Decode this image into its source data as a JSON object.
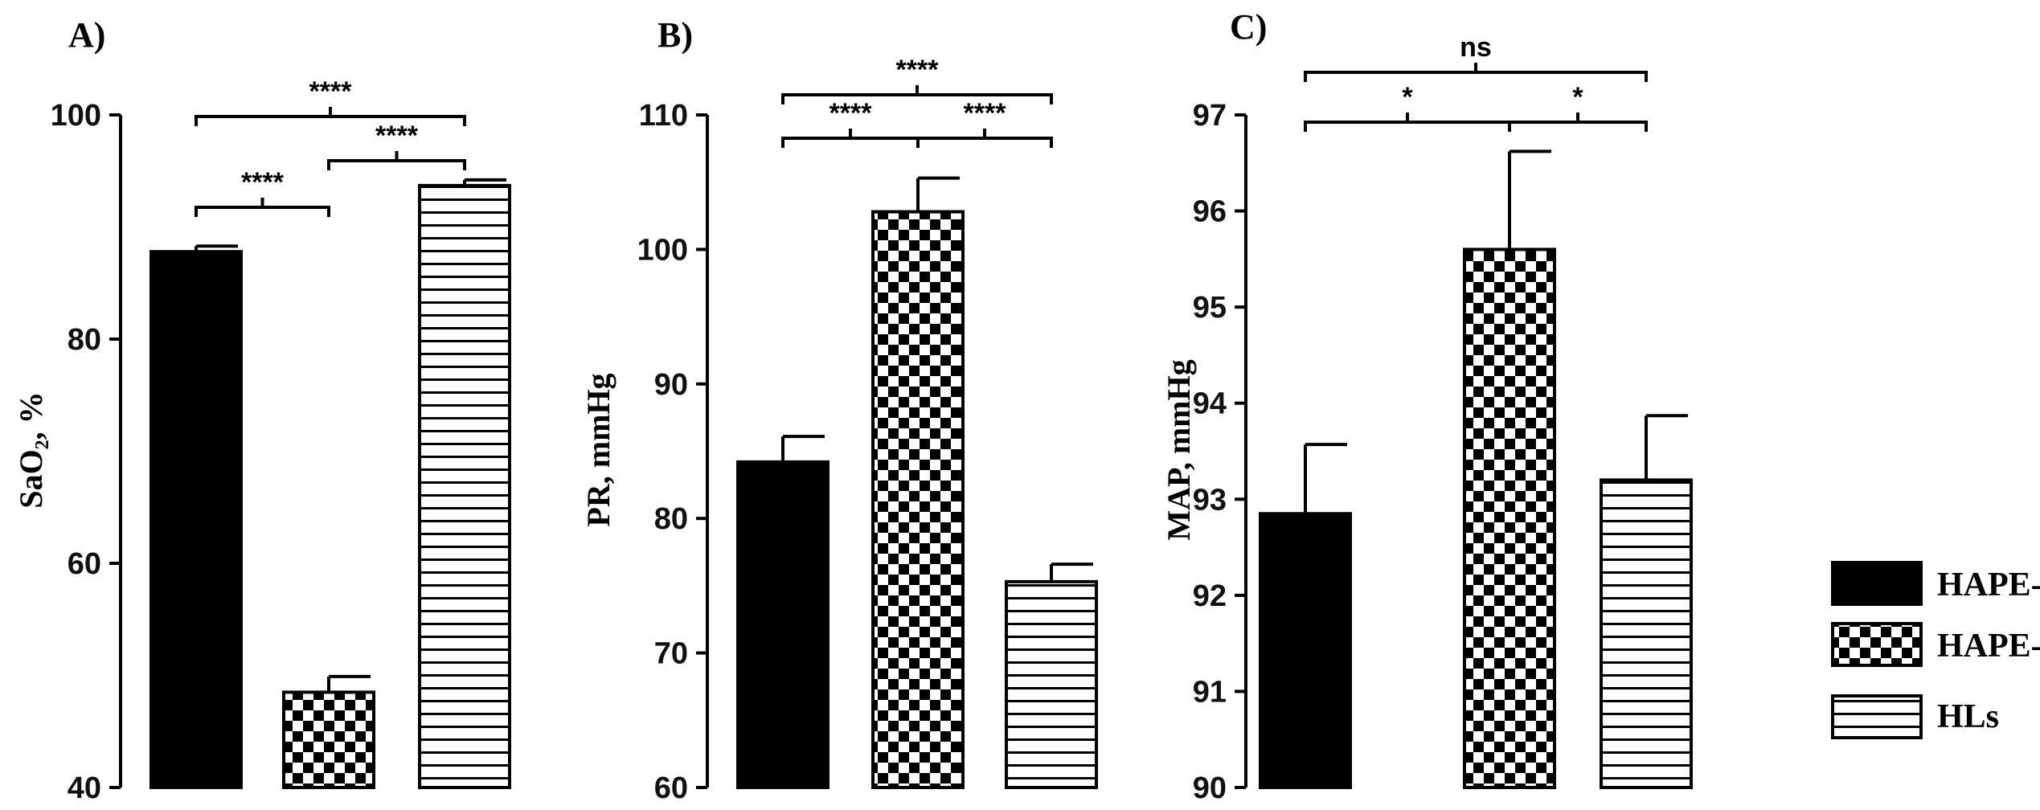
{
  "chart_data": [
    {
      "panel": "A)",
      "type": "bar",
      "ylabel": "SaO₂, %",
      "ylim": [
        40,
        100
      ],
      "yticks": [
        40,
        60,
        80,
        100
      ],
      "categories": [
        "HAPE-f",
        "HAPE-p",
        "HLs"
      ],
      "values": [
        87.8,
        48.5,
        93.7
      ],
      "errors": [
        0.5,
        1.4,
        0.5
      ],
      "significance": [
        {
          "from": 0,
          "to": 1,
          "label": "****",
          "level": 0
        },
        {
          "from": 1,
          "to": 2,
          "label": "****",
          "level": 1
        },
        {
          "from": 0,
          "to": 2,
          "label": "****",
          "level": 2
        }
      ]
    },
    {
      "panel": "B)",
      "type": "bar",
      "ylabel": "PR, mmHg",
      "ylim": [
        60,
        110
      ],
      "yticks": [
        60,
        70,
        80,
        90,
        100,
        110
      ],
      "categories": [
        "HAPE-f",
        "HAPE-p",
        "HLs"
      ],
      "values": [
        84.2,
        102.8,
        75.3
      ],
      "errors": [
        1.9,
        2.5,
        1.3
      ],
      "significance": [
        {
          "from": 0,
          "to": 1,
          "label": "****",
          "level": 0
        },
        {
          "from": 1,
          "to": 2,
          "label": "****",
          "level": 0
        },
        {
          "from": 0,
          "to": 2,
          "label": "****",
          "level": 1
        }
      ]
    },
    {
      "panel": "C)",
      "type": "bar",
      "ylabel": "MAP, mmHg",
      "ylim": [
        90,
        97
      ],
      "yticks": [
        90,
        91,
        92,
        93,
        94,
        95,
        96,
        97
      ],
      "categories": [
        "HAPE-f",
        "HAPE-p",
        "HLs"
      ],
      "values": [
        92.85,
        95.6,
        93.2
      ],
      "errors": [
        0.72,
        1.02,
        0.67
      ],
      "significance": [
        {
          "from": 0,
          "to": 1,
          "label": "*",
          "level": 0
        },
        {
          "from": 1,
          "to": 2,
          "label": "*",
          "level": 0
        },
        {
          "from": 0,
          "to": 2,
          "label": "ns",
          "level": 1
        }
      ]
    }
  ],
  "legend": [
    {
      "label": "HAPE-f",
      "pattern": "solid"
    },
    {
      "label": "HAPE-p",
      "pattern": "checker"
    },
    {
      "label": "HLs",
      "pattern": "hlines"
    }
  ],
  "colors": {
    "ink": "#000000",
    "paper": "#ffffff"
  }
}
